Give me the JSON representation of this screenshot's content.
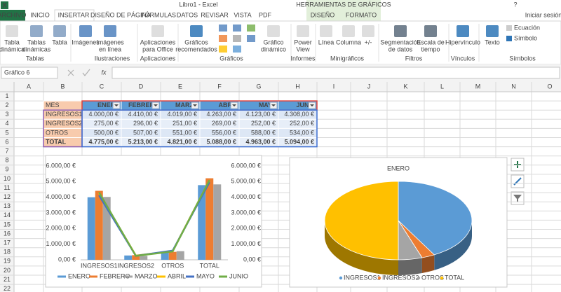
{
  "window": {
    "app_icon": "X",
    "title": "Libro1 - Excel",
    "tools_label": "HERRAMIENTAS DE GRÁFICOS",
    "help": "?",
    "sign_in": "Iniciar sesión"
  },
  "tabs": [
    "ARCHIVO",
    "INICIO",
    "INSERTAR",
    "DISEÑO DE PÁGINA",
    "FÓRMULAS",
    "DATOS",
    "REVISAR",
    "VISTA",
    "PDF",
    "DISEÑO",
    "FORMATO"
  ],
  "ribbon": {
    "groups": [
      {
        "label": "Tablas",
        "buttons": [
          [
            "Tabla",
            "dinámica"
          ],
          [
            "Tablas",
            "dinámicas"
          ],
          [
            "Tabla"
          ]
        ]
      },
      {
        "label": "Ilustraciones",
        "buttons": [
          [
            "Imágenes"
          ],
          [
            "Imágenes",
            "en línea"
          ]
        ]
      },
      {
        "label": "Aplicaciones",
        "buttons": [
          [
            "Aplicaciones",
            "para Office"
          ]
        ]
      },
      {
        "label": "Gráficos",
        "buttons": [
          [
            "Gráficos",
            "recomendados"
          ],
          [
            "Gráfico",
            "dinámico"
          ]
        ]
      },
      {
        "label": "Informes",
        "buttons": [
          [
            "Power",
            "View"
          ]
        ]
      },
      {
        "label": "Minigráficos",
        "buttons": [
          [
            "Línea"
          ],
          [
            "Columna"
          ],
          [
            "+/-"
          ]
        ]
      },
      {
        "label": "Filtros",
        "buttons": [
          [
            "Segmentación",
            "de datos"
          ],
          [
            "Escala de",
            "tiempo"
          ]
        ]
      },
      {
        "label": "Vínculos",
        "buttons": [
          [
            "Hipervínculo"
          ]
        ]
      },
      {
        "label": "Símbolos",
        "buttons": [
          [
            "Texto"
          ],
          [
            "Ecuación"
          ],
          [
            "Símbolo"
          ]
        ]
      }
    ]
  },
  "formula_bar": {
    "name_box": "Gráfico 6",
    "fx": "fx"
  },
  "columns": [
    "A",
    "B",
    "C",
    "D",
    "E",
    "F",
    "G",
    "H",
    "I",
    "J",
    "K",
    "L",
    "M",
    "N",
    "O"
  ],
  "rows": [
    1,
    2,
    3,
    4,
    5,
    6,
    7,
    8,
    9,
    10,
    11,
    12,
    13,
    14,
    15,
    16,
    17,
    18,
    19,
    20,
    21,
    22
  ],
  "table": {
    "header": [
      "MES",
      "ENERO",
      "FEBRERO",
      "MARZO",
      "ABRIL",
      "MAYO",
      "JUNIO"
    ],
    "rows": [
      [
        "INGRESOS1",
        "4.000,00 €",
        "4.410,00 €",
        "4.019,00 €",
        "4.263,00 €",
        "4.123,00 €",
        "4.308,00 €"
      ],
      [
        "INGRESOS2",
        "275,00 €",
        "296,00 €",
        "251,00 €",
        "269,00 €",
        "252,00 €",
        "252,00 €"
      ],
      [
        "OTROS",
        "500,00 €",
        "507,00 €",
        "551,00 €",
        "556,00 €",
        "588,00 €",
        "534,00 €"
      ],
      [
        "TOTAL",
        "4.775,00 €",
        "5.213,00 €",
        "4.821,00 €",
        "5.088,00 €",
        "4.963,00 €",
        "5.094,00 €"
      ]
    ]
  },
  "chart_data": [
    {
      "type": "combo",
      "categories": [
        "INGRESOS1",
        "INGRESOS2",
        "OTROS",
        "TOTAL"
      ],
      "series": [
        {
          "name": "ENERO",
          "color": "#5b9bd5",
          "kind": "bar",
          "values": [
            4000,
            275,
            500,
            4775
          ]
        },
        {
          "name": "FEBRERO",
          "color": "#ed7d31",
          "kind": "bar",
          "values": [
            4410,
            296,
            507,
            5213
          ]
        },
        {
          "name": "MARZO",
          "color": "#a5a5a5",
          "kind": "bar",
          "values": [
            4019,
            251,
            551,
            4821
          ]
        },
        {
          "name": "ABRIL",
          "color": "#ffc000",
          "kind": "line",
          "axis": "y2",
          "values": [
            4263,
            269,
            556,
            5088
          ]
        },
        {
          "name": "MAYO",
          "color": "#4472c4",
          "kind": "line",
          "axis": "y2",
          "values": [
            4123,
            252,
            588,
            4963
          ]
        },
        {
          "name": "JUNIO",
          "color": "#70ad47",
          "kind": "line",
          "axis": "y2",
          "values": [
            4308,
            252,
            534,
            5094
          ]
        }
      ],
      "ylim": [
        0,
        6000
      ],
      "yticks": [
        {
          "value": 0,
          "label": "0,00 €"
        },
        {
          "value": 1000,
          "label": "1.000,00 €"
        },
        {
          "value": 2000,
          "label": "2.000,00 €"
        },
        {
          "value": 3000,
          "label": "3.000,00 €"
        },
        {
          "value": 4000,
          "label": "4.000,00 €"
        },
        {
          "value": 5000,
          "label": "5.000,00 €"
        },
        {
          "value": 6000,
          "label": "6.000,00 €"
        }
      ],
      "y2lim": [
        0,
        6000
      ],
      "y2ticks": [
        {
          "value": 0,
          "label": "0,00 €"
        },
        {
          "value": 1000,
          "label": "1.000,00 €"
        },
        {
          "value": 2000,
          "label": "2.000,00 €"
        },
        {
          "value": 3000,
          "label": "3.000,00 €"
        },
        {
          "value": 4000,
          "label": "4.000,00 €"
        },
        {
          "value": 5000,
          "label": "5.000,00 €"
        },
        {
          "value": 6000,
          "label": "6.000,00 €"
        }
      ],
      "grid": false,
      "legend": "bottom"
    },
    {
      "type": "pie",
      "title": "ENERO",
      "categories": [
        "INGRESOS1",
        "INGRESOS2",
        "OTROS",
        "TOTAL"
      ],
      "values": [
        4000,
        275,
        500,
        4775
      ],
      "colors": [
        "#5b9bd5",
        "#ed7d31",
        "#a5a5a5",
        "#ffc000"
      ],
      "legend": "bottom"
    }
  ]
}
